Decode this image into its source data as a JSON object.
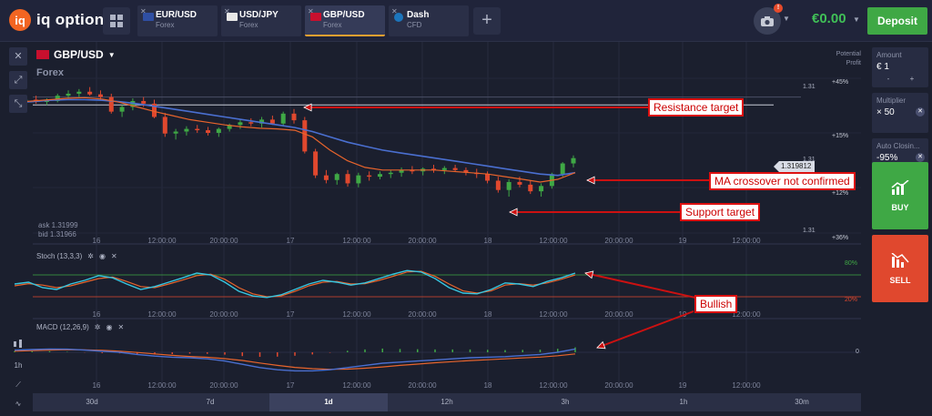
{
  "brand": {
    "name": "iq option",
    "mark": "iq"
  },
  "tabs": [
    {
      "name": "EUR/USD",
      "type": "Forex",
      "active": false,
      "flag_color": "#2f4fa3"
    },
    {
      "name": "USD/JPY",
      "type": "Forex",
      "active": false,
      "flag_color": "#e8e8e8"
    },
    {
      "name": "GBP/USD",
      "type": "Forex",
      "active": true,
      "flag_color": "#c8102e"
    },
    {
      "name": "Dash",
      "type": "CFD",
      "active": false,
      "flag_color": "#1c75bc"
    }
  ],
  "header": {
    "notifications": "!",
    "balance": "€0.00",
    "deposit_label": "Deposit"
  },
  "asset": {
    "name": "GBP/USD",
    "type": "Forex"
  },
  "potential_profit": {
    "line1": "Potential",
    "line2": "Profit"
  },
  "profit_axis": [
    "+45%",
    "+15%",
    "+12%",
    "+36%"
  ],
  "price_axis": [
    "1.31",
    "1.31",
    "1.31"
  ],
  "current_price": "1.319812",
  "quote": {
    "ask": "ask 1.31999",
    "bid": "bid 1.31966"
  },
  "time_labels": [
    "16",
    "12:00:00",
    "20:00:00",
    "17",
    "12:00:00",
    "20:00:00",
    "18",
    "12:00:00",
    "20:00:00",
    "19",
    "12:00:00"
  ],
  "indicators": {
    "stoch": {
      "label": "Stoch (13,3,3)",
      "upper": "80%",
      "lower": "20%"
    },
    "macd": {
      "label": "MACD (12,26,9)",
      "zero": "0"
    }
  },
  "bottom_tools": {
    "chart_type": "candles",
    "interval": "1h"
  },
  "timeframes": [
    {
      "label": "30d",
      "active": false
    },
    {
      "label": "7d",
      "active": false
    },
    {
      "label": "1d",
      "active": true
    },
    {
      "label": "12h",
      "active": false
    },
    {
      "label": "3h",
      "active": false
    },
    {
      "label": "1h",
      "active": false
    },
    {
      "label": "30m",
      "active": false
    }
  ],
  "trade_panel": {
    "amount_label": "Amount",
    "amount_value": "€ 1",
    "minus": "-",
    "plus": "+",
    "multiplier_label": "Multiplier",
    "multiplier_value": "× 50",
    "autoclose_label": "Auto Closin...",
    "autoclose_value": "-95%",
    "buy_label": "BUY",
    "sell_label": "SELL"
  },
  "annotations": {
    "resistance": "Resistance target",
    "ma_crossover": "MA crossover not confirmed",
    "support": "Support target",
    "bullish": "Bullish"
  },
  "colors": {
    "background": "#1b1f2e",
    "bull": "#3fa845",
    "bear": "#e0482e",
    "ma_fast": "#e8642c",
    "ma_slow": "#4a6fd0",
    "stoch_k": "#37c6e0",
    "annotation": "#cc1111"
  },
  "chart_data": {
    "type": "line",
    "candles": [
      [
        1.32,
        1.3205,
        1.3195,
        1.3202
      ],
      [
        1.3202,
        1.321,
        1.3198,
        1.3206
      ],
      [
        1.3206,
        1.3212,
        1.32,
        1.3203
      ],
      [
        1.3203,
        1.3208,
        1.3198,
        1.3204
      ],
      [
        1.3204,
        1.3215,
        1.3202,
        1.3212
      ],
      [
        1.3212,
        1.322,
        1.3208,
        1.3215
      ],
      [
        1.3215,
        1.3222,
        1.321,
        1.3218
      ],
      [
        1.3218,
        1.3225,
        1.3212,
        1.3214
      ],
      [
        1.3214,
        1.322,
        1.3205,
        1.321
      ],
      [
        1.321,
        1.3215,
        1.3185,
        1.3188
      ],
      [
        1.3188,
        1.3198,
        1.318,
        1.3195
      ],
      [
        1.3195,
        1.3208,
        1.319,
        1.3204
      ],
      [
        1.3204,
        1.321,
        1.3195,
        1.32
      ],
      [
        1.32,
        1.3206,
        1.3178,
        1.318
      ],
      [
        1.318,
        1.3186,
        1.315,
        1.3155
      ],
      [
        1.3155,
        1.3162,
        1.3146,
        1.3158
      ],
      [
        1.3158,
        1.3166,
        1.3152,
        1.3162
      ],
      [
        1.3162,
        1.3168,
        1.3156,
        1.316
      ],
      [
        1.316,
        1.3165,
        1.3152,
        1.3156
      ],
      [
        1.3156,
        1.3164,
        1.315,
        1.3162
      ],
      [
        1.3162,
        1.317,
        1.3158,
        1.3168
      ],
      [
        1.3168,
        1.3176,
        1.3162,
        1.3172
      ],
      [
        1.3172,
        1.3178,
        1.3166,
        1.317
      ],
      [
        1.317,
        1.318,
        1.3164,
        1.3176
      ],
      [
        1.3176,
        1.3182,
        1.3168,
        1.317
      ],
      [
        1.317,
        1.3188,
        1.3166,
        1.3185
      ],
      [
        1.3185,
        1.3192,
        1.317,
        1.3175
      ],
      [
        1.3175,
        1.318,
        1.3125,
        1.3128
      ],
      [
        1.3128,
        1.3132,
        1.3088,
        1.3092
      ],
      [
        1.3092,
        1.31,
        1.308,
        1.3085
      ],
      [
        1.3085,
        1.3096,
        1.3078,
        1.3094
      ],
      [
        1.3094,
        1.31,
        1.3075,
        1.308
      ],
      [
        1.308,
        1.3096,
        1.3074,
        1.3092
      ],
      [
        1.3092,
        1.3098,
        1.3084,
        1.309
      ],
      [
        1.309,
        1.3098,
        1.3086,
        1.3094
      ],
      [
        1.3094,
        1.31,
        1.3088,
        1.3096
      ],
      [
        1.3096,
        1.3104,
        1.309,
        1.31
      ],
      [
        1.31,
        1.3106,
        1.3094,
        1.3098
      ],
      [
        1.3098,
        1.3104,
        1.3092,
        1.3102
      ],
      [
        1.3102,
        1.3108,
        1.3096,
        1.31
      ],
      [
        1.31,
        1.3106,
        1.3094,
        1.3103
      ],
      [
        1.3103,
        1.3108,
        1.3097,
        1.31
      ],
      [
        1.31,
        1.3104,
        1.3092,
        1.3096
      ],
      [
        1.3096,
        1.3102,
        1.3088,
        1.3094
      ],
      [
        1.3094,
        1.3098,
        1.308,
        1.3084
      ],
      [
        1.3084,
        1.309,
        1.3066,
        1.307
      ],
      [
        1.307,
        1.3086,
        1.306,
        1.3082
      ],
      [
        1.3082,
        1.309,
        1.3074,
        1.3078
      ],
      [
        1.3078,
        1.3084,
        1.3064,
        1.3068
      ],
      [
        1.3068,
        1.308,
        1.306,
        1.3076
      ],
      [
        1.3076,
        1.3096,
        1.3072,
        1.3094
      ],
      [
        1.3094,
        1.3112,
        1.309,
        1.311
      ],
      [
        1.311,
        1.3122,
        1.3104,
        1.3118
      ]
    ],
    "ma_fast": [
      1.3202,
      1.3204,
      1.3206,
      1.3208,
      1.3209,
      1.3207,
      1.3202,
      1.3195,
      1.3188,
      1.3182,
      1.3176,
      1.3172,
      1.3168,
      1.3165,
      1.3163,
      1.3162,
      1.316,
      1.315,
      1.313,
      1.3114,
      1.3104,
      1.31,
      1.31,
      1.31,
      1.31,
      1.3098,
      1.3096,
      1.3094,
      1.309,
      1.3086,
      1.3082,
      1.3086,
      1.3096
    ],
    "ma_slow": [
      1.3202,
      1.3203,
      1.3205,
      1.3206,
      1.3206,
      1.3205,
      1.3203,
      1.32,
      1.3196,
      1.3192,
      1.3188,
      1.3184,
      1.318,
      1.3176,
      1.3172,
      1.3168,
      1.3164,
      1.3158,
      1.315,
      1.3142,
      1.3136,
      1.313,
      1.3126,
      1.3122,
      1.3118,
      1.3114,
      1.311,
      1.3106,
      1.3102,
      1.3098,
      1.3094,
      1.3092,
      1.3096
    ],
    "stoch_k": [
      55,
      60,
      45,
      40,
      55,
      65,
      78,
      72,
      55,
      40,
      48,
      60,
      72,
      85,
      80,
      60,
      35,
      22,
      18,
      25,
      40,
      55,
      65,
      60,
      52,
      58,
      70,
      82,
      92,
      88,
      70,
      45,
      30,
      28,
      40,
      58,
      55,
      48,
      62,
      72,
      85
    ],
    "stoch_d": [
      50,
      56,
      52,
      45,
      50,
      60,
      70,
      74,
      62,
      48,
      45,
      55,
      66,
      78,
      82,
      68,
      45,
      28,
      20,
      22,
      35,
      50,
      60,
      62,
      55,
      56,
      65,
      76,
      88,
      90,
      76,
      55,
      36,
      30,
      36,
      52,
      56,
      52,
      58,
      68,
      80
    ],
    "macd_line": [
      0.2,
      0.25,
      0.3,
      0.28,
      0.2,
      0.1,
      0.0,
      -0.2,
      -0.35,
      -0.45,
      -0.5,
      -0.6,
      -0.8,
      -1.1,
      -1.4,
      -1.6,
      -1.7,
      -1.7,
      -1.6,
      -1.4,
      -1.2,
      -1.0,
      -0.9,
      -0.8,
      -0.7,
      -0.6,
      -0.5,
      -0.45,
      -0.4,
      -0.3,
      -0.2,
      0.0,
      0.3
    ],
    "macd_signal": [
      0.1,
      0.15,
      0.2,
      0.24,
      0.22,
      0.18,
      0.1,
      -0.02,
      -0.15,
      -0.28,
      -0.38,
      -0.46,
      -0.58,
      -0.75,
      -0.98,
      -1.2,
      -1.38,
      -1.5,
      -1.56,
      -1.54,
      -1.46,
      -1.34,
      -1.2,
      -1.08,
      -0.96,
      -0.86,
      -0.76,
      -0.68,
      -0.6,
      -0.52,
      -0.44,
      -0.32,
      -0.15
    ],
    "ylim": [
      1.306,
      1.323
    ],
    "resistance_price": 1.321,
    "current_price": 1.319812
  }
}
